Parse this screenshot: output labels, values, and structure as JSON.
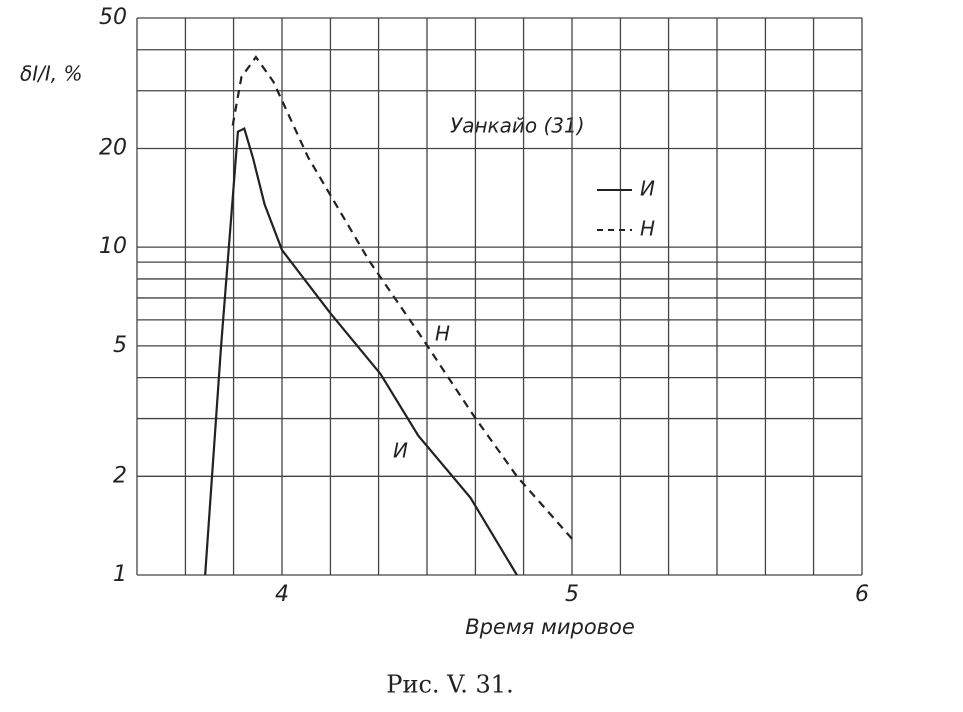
{
  "chart_data": {
    "type": "line",
    "title": "Уанкайо (31)",
    "ylabel": "δI/I, %",
    "xlabel": "Время мировое",
    "caption": "Рис. V. 31.",
    "annotations": [
      "Н",
      "И"
    ],
    "xlim": [
      3.5,
      6
    ],
    "xticks": [
      4,
      5,
      6
    ],
    "xgrid": [
      3.5,
      3.667,
      3.833,
      4,
      4.167,
      4.333,
      4.5,
      4.667,
      4.833,
      5,
      5.167,
      5.333,
      5.5,
      5.667,
      5.833,
      6
    ],
    "ylim": [
      1,
      50
    ],
    "log_y": true,
    "yticks": [
      1,
      2,
      5,
      10,
      20,
      50
    ],
    "ygrid": [
      1,
      2,
      3,
      4,
      5,
      6,
      7,
      8,
      9,
      10,
      20,
      30,
      40,
      50
    ],
    "grid": true,
    "legend": "upper right",
    "series": [
      {
        "name": "И",
        "color": "#222",
        "dash": false,
        "x": [
          3.735,
          3.79,
          3.848,
          3.87,
          3.9,
          3.94,
          4.0,
          4.166,
          4.34,
          4.47,
          4.65,
          4.81
        ],
        "values": [
          1,
          5,
          22.5,
          23,
          18.7,
          13.5,
          9.8,
          6.3,
          4.1,
          2.66,
          1.72,
          1
        ]
      },
      {
        "name": "Н",
        "color": "#222",
        "dash": true,
        "x": [
          3.83,
          3.86,
          3.91,
          3.97,
          4.09,
          4.3,
          4.47,
          4.66,
          4.81,
          5.0
        ],
        "values": [
          23.5,
          33,
          38,
          32,
          18.8,
          9.1,
          5.5,
          3.07,
          2.0,
          1.29
        ]
      }
    ]
  }
}
